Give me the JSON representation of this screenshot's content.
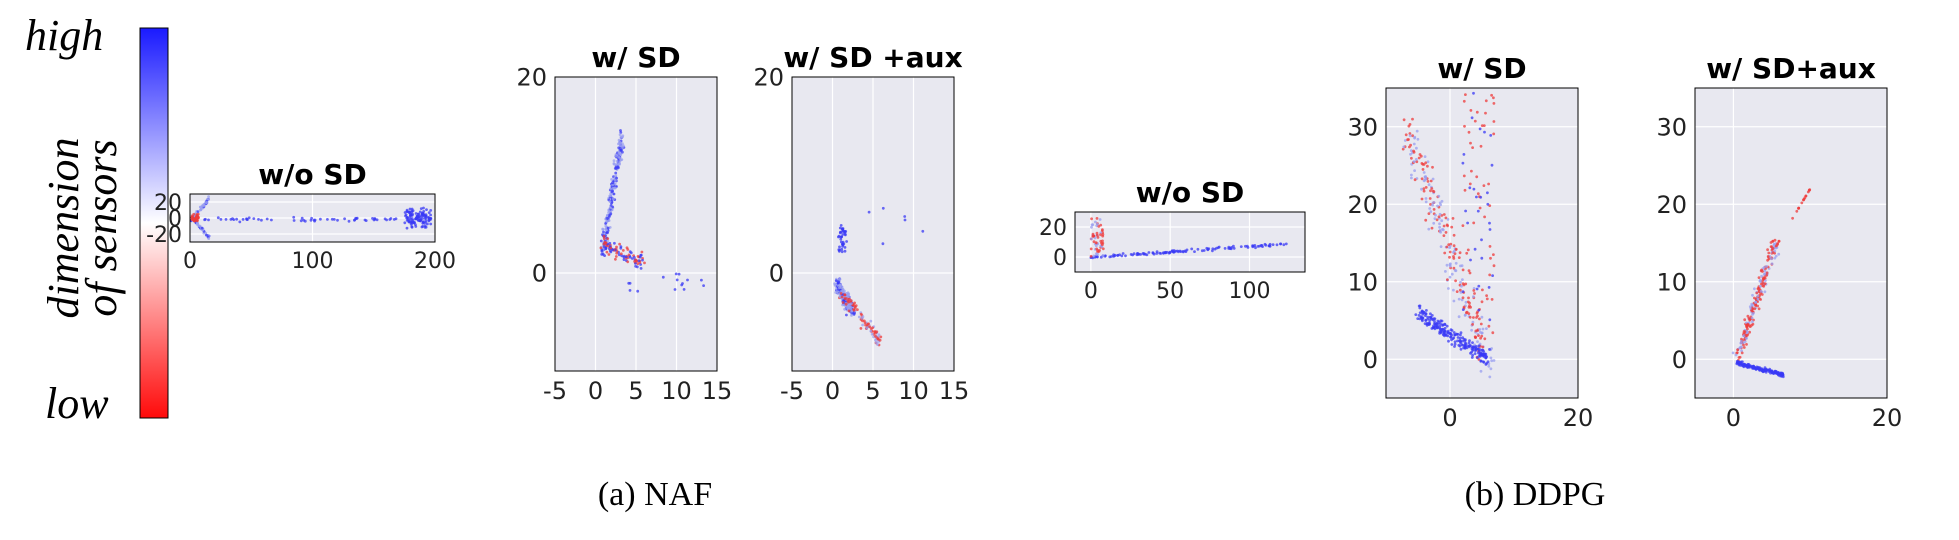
{
  "colorbar": {
    "label_line1": "dimension",
    "label_line2": "of sensors",
    "high_label": "high",
    "low_label": "low",
    "colors": {
      "high": "#1a1aff",
      "mid": "#ffffff",
      "low": "#ff0a0a"
    }
  },
  "captions": {
    "naf": "(a) NAF",
    "ddpg": "(b) DDPG"
  },
  "style": {
    "panel_bg": "#e8e8f0",
    "grid": "#ffffff",
    "blue": "#3a3af5",
    "red": "#ef3b3b",
    "light_blue": "#9a9ff0"
  },
  "chart_data": [
    {
      "id": "naf-wo",
      "group": "NAF",
      "type": "scatter",
      "title": "w/o SD",
      "xlim": [
        0,
        200
      ],
      "ylim": [
        -30,
        30
      ],
      "xticks": [
        0,
        100,
        200
      ],
      "xtick_labels": [
        "0",
        "100",
        "200"
      ],
      "yticks": [
        20,
        0,
        -20
      ],
      "ytick_labels": [
        "20",
        "0",
        "-20"
      ],
      "grid": true
    },
    {
      "id": "naf-sd",
      "group": "NAF",
      "type": "scatter",
      "title": "w/ SD",
      "xlim": [
        -5,
        15
      ],
      "ylim": [
        -10,
        20
      ],
      "xticks": [
        -5,
        0,
        5,
        10,
        15
      ],
      "xtick_labels": [
        "-5",
        "0",
        "5",
        "10",
        "15"
      ],
      "yticks": [
        20,
        0
      ],
      "ytick_labels": [
        "20",
        "0"
      ],
      "grid": true
    },
    {
      "id": "naf-sdaux",
      "group": "NAF",
      "type": "scatter",
      "title": "w/ SD +aux",
      "xlim": [
        -5,
        15
      ],
      "ylim": [
        -10,
        20
      ],
      "xticks": [
        -5,
        0,
        5,
        10,
        15
      ],
      "xtick_labels": [
        "-5",
        "0",
        "5",
        "10",
        "15"
      ],
      "yticks": [
        20,
        0
      ],
      "ytick_labels": [
        "20",
        "0"
      ],
      "grid": true
    },
    {
      "id": "ddpg-wo",
      "group": "DDPG",
      "type": "scatter",
      "title": "w/o SD",
      "xlim": [
        -10,
        135
      ],
      "ylim": [
        -10,
        30
      ],
      "xticks": [
        0,
        50,
        100
      ],
      "xtick_labels": [
        "0",
        "50",
        "100"
      ],
      "yticks": [
        20,
        0
      ],
      "ytick_labels": [
        "20",
        "0"
      ],
      "grid": true
    },
    {
      "id": "ddpg-sd",
      "group": "DDPG",
      "type": "scatter",
      "title": "w/ SD",
      "xlim": [
        -10,
        20
      ],
      "ylim": [
        -5,
        35
      ],
      "xticks": [
        0,
        20
      ],
      "xtick_labels": [
        "0",
        "20"
      ],
      "yticks": [
        30,
        20,
        10,
        0
      ],
      "ytick_labels": [
        "30",
        "20",
        "10",
        "0"
      ],
      "grid": true
    },
    {
      "id": "ddpg-sdaux",
      "group": "DDPG",
      "type": "scatter",
      "title": "w/ SD+aux",
      "xlim": [
        -5,
        20
      ],
      "ylim": [
        -5,
        35
      ],
      "xticks": [
        0,
        20
      ],
      "xtick_labels": [
        "0",
        "20"
      ],
      "yticks": [
        30,
        20,
        10,
        0
      ],
      "ytick_labels": [
        "30",
        "20",
        "10",
        "0"
      ],
      "grid": true
    }
  ]
}
